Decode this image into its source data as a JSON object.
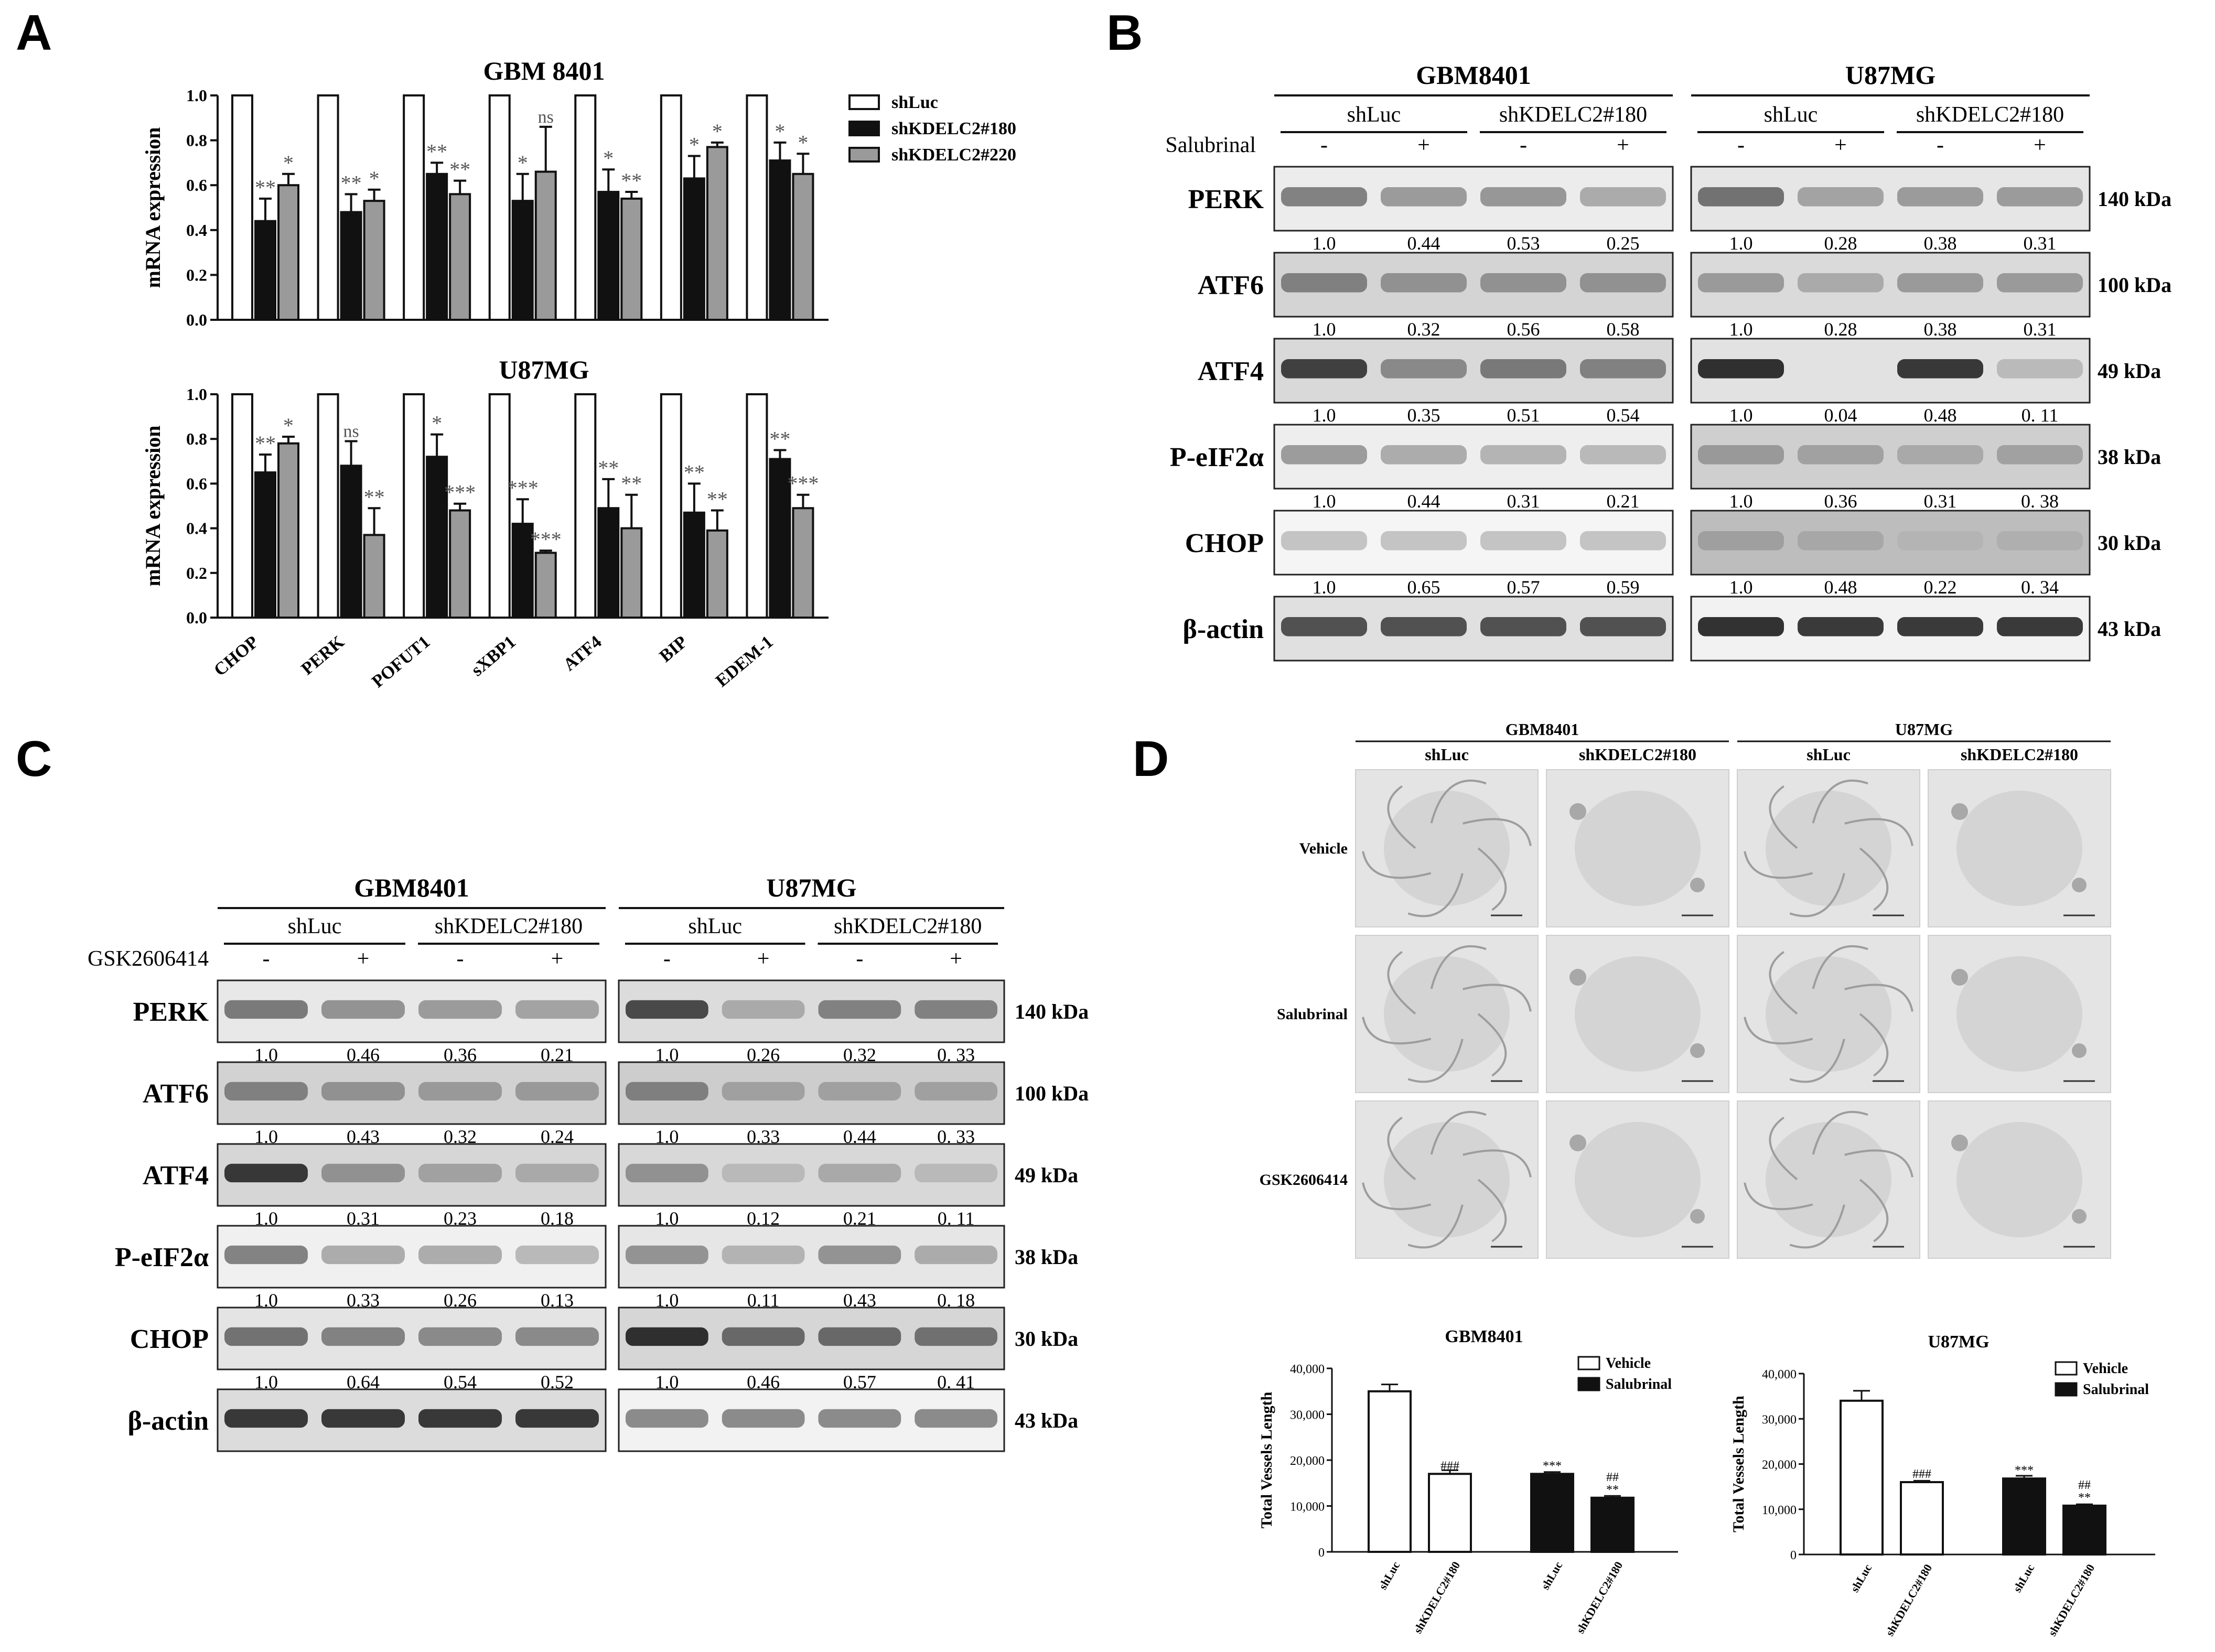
{
  "panels": {
    "A": "A",
    "B": "B",
    "C": "C",
    "D": "D"
  },
  "mrna_legend": [
    "shLuc",
    "shKDELC2#180",
    "shKDELC2#220"
  ],
  "colors": {
    "white": "#ffffff",
    "black": "#111111",
    "gray": "#9a9a9a"
  },
  "chart_data": [
    {
      "type": "bar",
      "title": "GBM 8401",
      "ylabel": "mRNA expression",
      "ylim": [
        0,
        1.0
      ],
      "yticks": [
        "0.0",
        "0.2",
        "0.4",
        "0.6",
        "0.8",
        "1.0"
      ],
      "categories": [
        "CHOP",
        "PERK",
        "POFUT1",
        "sXBP1",
        "ATF4",
        "BIP",
        "EDEM-1"
      ],
      "series": [
        {
          "name": "shLuc",
          "values": [
            1,
            1,
            1,
            1,
            1,
            1,
            1
          ],
          "errors": [
            0,
            0,
            0,
            0,
            0,
            0,
            0
          ],
          "sig": [
            "",
            "",
            "",
            "",
            "",
            "",
            ""
          ]
        },
        {
          "name": "shKDELC2#180",
          "values": [
            0.44,
            0.48,
            0.65,
            0.53,
            0.57,
            0.63,
            0.71
          ],
          "errors": [
            0.1,
            0.08,
            0.05,
            0.12,
            0.1,
            0.1,
            0.08
          ],
          "sig": [
            "**",
            "**",
            "**",
            "*",
            "*",
            "*",
            "*"
          ]
        },
        {
          "name": "shKDELC2#220",
          "values": [
            0.6,
            0.53,
            0.56,
            0.66,
            0.54,
            0.77,
            0.65
          ],
          "errors": [
            0.05,
            0.05,
            0.06,
            0.2,
            0.03,
            0.02,
            0.09
          ],
          "sig": [
            "*",
            "*",
            "**",
            "ns",
            "**",
            "*",
            "*"
          ]
        }
      ]
    },
    {
      "type": "bar",
      "title": "U87MG",
      "ylabel": "mRNA expression",
      "ylim": [
        0,
        1.0
      ],
      "yticks": [
        "0.0",
        "0.2",
        "0.4",
        "0.6",
        "0.8",
        "1.0"
      ],
      "categories": [
        "CHOP",
        "PERK",
        "POFUT1",
        "sXBP1",
        "ATF4",
        "BIP",
        "EDEM-1"
      ],
      "series": [
        {
          "name": "shLuc",
          "values": [
            1,
            1,
            1,
            1,
            1,
            1,
            1
          ],
          "errors": [
            0,
            0,
            0,
            0,
            0,
            0,
            0
          ],
          "sig": [
            "",
            "",
            "",
            "",
            "",
            "",
            ""
          ]
        },
        {
          "name": "shKDELC2#180",
          "values": [
            0.65,
            0.68,
            0.72,
            0.42,
            0.49,
            0.47,
            0.71
          ],
          "errors": [
            0.08,
            0.11,
            0.1,
            0.11,
            0.13,
            0.13,
            0.04
          ],
          "sig": [
            "**",
            "ns",
            "*",
            "***",
            "**",
            "**",
            "**"
          ]
        },
        {
          "name": "shKDELC2#220",
          "values": [
            0.78,
            0.37,
            0.48,
            0.29,
            0.4,
            0.39,
            0.49
          ],
          "errors": [
            0.03,
            0.12,
            0.03,
            0.01,
            0.15,
            0.09,
            0.06
          ],
          "sig": [
            "*",
            "**",
            "***",
            "***",
            "**",
            "**",
            "***"
          ]
        }
      ]
    },
    {
      "type": "bar",
      "title": "GBM8401",
      "ylabel": "Total Vessels Length",
      "ylim": [
        0,
        40000
      ],
      "yticks": [
        "0",
        "10,000",
        "20,000",
        "30,000",
        "40,000"
      ],
      "categories": [
        "shLuc",
        "shKDELC2#180",
        "shLuc",
        "shKDELC2#180"
      ],
      "legend": [
        "Vehicle",
        "Salubrinal"
      ],
      "series": [
        {
          "name": "Vehicle",
          "values": [
            35000,
            17000,
            null,
            null
          ],
          "errors": [
            1500,
            800,
            0,
            0
          ],
          "sig": [
            "",
            "###",
            "",
            ""
          ]
        },
        {
          "name": "Salubrinal",
          "values": [
            null,
            null,
            17000,
            11800
          ],
          "errors": [
            0,
            0,
            400,
            400
          ],
          "sig": [
            "",
            "",
            "***",
            "##\n**"
          ]
        }
      ]
    },
    {
      "type": "bar",
      "title": "U87MG",
      "ylabel": "Total Vessels Length",
      "ylim": [
        0,
        40000
      ],
      "yticks": [
        "0",
        "10,000",
        "20,000",
        "30,000",
        "40,000"
      ],
      "categories": [
        "shLuc",
        "shKDELC2#180",
        "shLuc",
        "shKDELC2#180"
      ],
      "legend": [
        "Vehicle",
        "Salubrinal"
      ],
      "series": [
        {
          "name": "Vehicle",
          "values": [
            34000,
            16000,
            null,
            null
          ],
          "errors": [
            2200,
            300,
            0,
            0
          ],
          "sig": [
            "",
            "###",
            "",
            ""
          ]
        },
        {
          "name": "Salubrinal",
          "values": [
            null,
            null,
            16800,
            10800
          ],
          "errors": [
            0,
            0,
            600,
            300
          ],
          "sig": [
            "",
            "",
            "***",
            "##\n**"
          ]
        }
      ]
    }
  ],
  "blotB": {
    "cells": [
      "GBM8401",
      "U87MG"
    ],
    "groups": [
      "shLuc",
      "shKDELC2#180"
    ],
    "treatment": "Salubrinal",
    "signs": [
      "-",
      "+",
      "-",
      "+"
    ],
    "rows": [
      {
        "label": "PERK",
        "kda": "140 kDa",
        "left": [
          "1.0",
          "0.44",
          "0.53",
          "0.25"
        ],
        "right": [
          "1.0",
          "0.28",
          "0.38",
          "0.31"
        ],
        "bandsL": [
          0.45,
          0.3,
          0.32,
          0.2
        ],
        "bandsR": [
          0.55,
          0.25,
          0.3,
          0.3
        ],
        "bgL": "#ececec",
        "bgR": "#e6e6e6"
      },
      {
        "label": "ATF6",
        "kda": "100 kDa",
        "left": [
          "1.0",
          "0.32",
          "0.56",
          "0.58"
        ],
        "right": [
          "1.0",
          "0.28",
          "0.38",
          "0.31"
        ],
        "bandsL": [
          0.45,
          0.35,
          0.35,
          0.35
        ],
        "bandsR": [
          0.3,
          0.2,
          0.3,
          0.3
        ],
        "bgL": "#d4d4d4",
        "bgR": "#dadada"
      },
      {
        "label": "ATF4",
        "kda": "49 kDa",
        "left": [
          "1.0",
          "0.35",
          "0.51",
          "0.54"
        ],
        "right": [
          "1.0",
          "0.04",
          "0.48",
          "0. 11"
        ],
        "bandsL": [
          0.85,
          0.4,
          0.5,
          0.45
        ],
        "bandsR": [
          0.95,
          0.0,
          0.9,
          0.1
        ],
        "bgL": "#d9d9d9",
        "bgR": "#e2e2e2"
      },
      {
        "label": "P-eIF2α",
        "kda": "38 kDa",
        "left": [
          "1.0",
          "0.44",
          "0.31",
          "0.21"
        ],
        "right": [
          "1.0",
          "0.36",
          "0.31",
          "0. 38"
        ],
        "bandsL": [
          0.3,
          0.2,
          0.15,
          0.12
        ],
        "bandsR": [
          0.3,
          0.25,
          0.2,
          0.25
        ],
        "bgL": "#eeeeee",
        "bgR": "#cfcfcf"
      },
      {
        "label": "CHOP",
        "kda": "30 kDa",
        "left": [
          "1.0",
          "0.65",
          "0.57",
          "0.59"
        ],
        "right": [
          "1.0",
          "0.48",
          "0.22",
          "0. 34"
        ],
        "bandsL": [
          0.05,
          0.05,
          0.05,
          0.05
        ],
        "bandsR": [
          0.25,
          0.2,
          0.12,
          0.15
        ],
        "bgL": "#f5f5f5",
        "bgR": "#bdbdbd"
      },
      {
        "label": "β-actin",
        "kda": "43 kDa",
        "left": [],
        "right": [],
        "bandsL": [
          0.75,
          0.75,
          0.75,
          0.75
        ],
        "bandsR": [
          0.95,
          0.9,
          0.9,
          0.9
        ],
        "bgL": "#e0e0e0",
        "bgR": "#f2f2f2"
      }
    ]
  },
  "blotC": {
    "cells": [
      "GBM8401",
      "U87MG"
    ],
    "groups": [
      "shLuc",
      "shKDELC2#180"
    ],
    "treatment": "GSK2606414",
    "signs": [
      "-",
      "+",
      "-",
      "+"
    ],
    "rows": [
      {
        "label": "PERK",
        "kda": "140 kDa",
        "left": [
          "1.0",
          "0.46",
          "0.36",
          "0.21"
        ],
        "right": [
          "1.0",
          "0.26",
          "0.32",
          "0. 33"
        ],
        "bandsL": [
          0.5,
          0.35,
          0.3,
          0.25
        ],
        "bandsR": [
          0.8,
          0.2,
          0.45,
          0.45
        ],
        "bgL": "#e8e8e8",
        "bgR": "#dcdcdc"
      },
      {
        "label": "ATF6",
        "kda": "100 kDa",
        "left": [
          "1.0",
          "0.43",
          "0.32",
          "0.24"
        ],
        "right": [
          "1.0",
          "0.33",
          "0.44",
          "0. 33"
        ],
        "bandsL": [
          0.45,
          0.35,
          0.3,
          0.3
        ],
        "bandsR": [
          0.45,
          0.25,
          0.25,
          0.25
        ],
        "bgL": "#d2d2d2",
        "bgR": "#cdcdcd"
      },
      {
        "label": "ATF4",
        "kda": "49 kDa",
        "left": [
          "1.0",
          "0.31",
          "0.23",
          "0.18"
        ],
        "right": [
          "1.0",
          "0.12",
          "0.21",
          "0. 11"
        ],
        "bandsL": [
          0.9,
          0.35,
          0.25,
          0.2
        ],
        "bandsR": [
          0.35,
          0.1,
          0.2,
          0.1
        ],
        "bgL": "#d6d6d6",
        "bgR": "#d8d8d8"
      },
      {
        "label": "P-eIF2α",
        "kda": "38 kDa",
        "left": [
          "1.0",
          "0.33",
          "0.26",
          "0.13"
        ],
        "right": [
          "1.0",
          "0.11",
          "0.43",
          "0. 18"
        ],
        "bandsL": [
          0.45,
          0.2,
          0.2,
          0.12
        ],
        "bandsR": [
          0.35,
          0.15,
          0.35,
          0.2
        ],
        "bgL": "#f0f0f0",
        "bgR": "#e6e6e6"
      },
      {
        "label": "CHOP",
        "kda": "30 kDa",
        "left": [
          "1.0",
          "0.64",
          "0.54",
          "0.52"
        ],
        "right": [
          "1.0",
          "0.46",
          "0.57",
          "0. 41"
        ],
        "bandsL": [
          0.55,
          0.45,
          0.4,
          0.4
        ],
        "bandsR": [
          0.95,
          0.6,
          0.6,
          0.55
        ],
        "bgL": "#e4e4e4",
        "bgR": "#d6d6d6"
      },
      {
        "label": "β-actin",
        "kda": "43 kDa",
        "left": [],
        "right": [],
        "bandsL": [
          0.9,
          0.9,
          0.9,
          0.9
        ],
        "bandsR": [
          0.4,
          0.4,
          0.4,
          0.4
        ],
        "bgL": "#dcdcdc",
        "bgR": "#f2f2f2"
      }
    ]
  },
  "panelD": {
    "cells": [
      "GBM8401",
      "U87MG"
    ],
    "cols": [
      "shLuc",
      "shKDELC2#180",
      "shLuc",
      "shKDELC2#180"
    ],
    "rows": [
      "Vehicle",
      "Salubrinal",
      "GSK2606414"
    ]
  }
}
